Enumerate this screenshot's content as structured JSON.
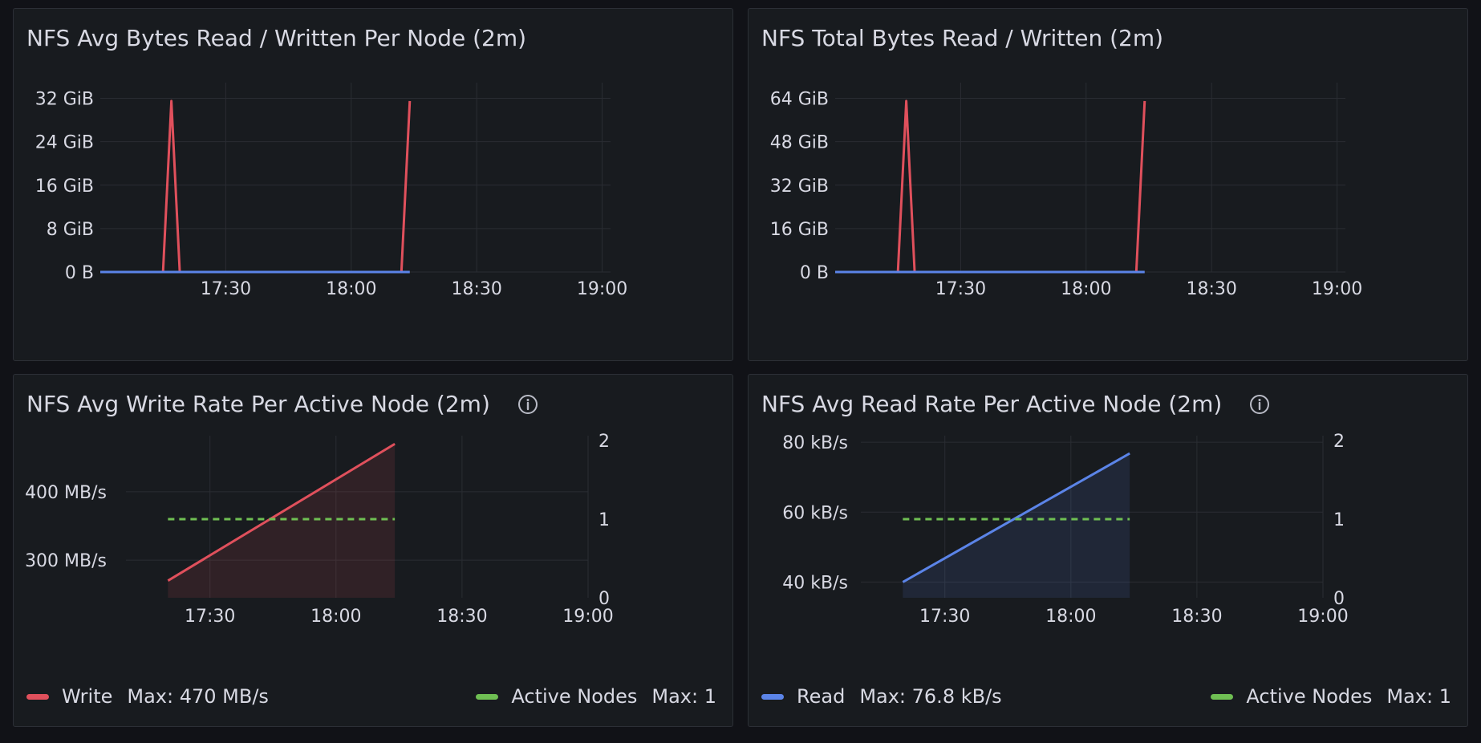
{
  "colors": {
    "write": "#e0505c",
    "read": "#5b84e8",
    "active_nodes": "#6fbf53",
    "grid": "#2a2d33",
    "tick_text": "#d8d9e3"
  },
  "panels": [
    {
      "title": "NFS Avg Bytes Read / Written Per Node (2m)",
      "has_info_icon": false
    },
    {
      "title": "NFS Total Bytes Read / Written (2m)",
      "has_info_icon": false
    },
    {
      "title": "NFS Avg Write Rate Per Active Node (2m)",
      "has_info_icon": true,
      "legend": [
        {
          "name": "Write",
          "max_label": "Max: 470 MB/s"
        },
        {
          "name": "Active Nodes",
          "max_label": "Max: 1"
        }
      ]
    },
    {
      "title": "NFS Avg Read Rate Per Active Node (2m)",
      "has_info_icon": true,
      "legend": [
        {
          "name": "Read",
          "max_label": "Max: 76.8 kB/s"
        },
        {
          "name": "Active Nodes",
          "max_label": "Max: 1"
        }
      ]
    }
  ],
  "chart_data": [
    {
      "type": "line",
      "title": "NFS Avg Bytes Read / Written Per Node (2m)",
      "x_ticks": [
        "17:30",
        "18:00",
        "18:30",
        "19:00"
      ],
      "x_range": [
        "17:00",
        "19:02"
      ],
      "y_ticks": [
        "32 GiB",
        "24 GiB",
        "16 GiB",
        "8 GiB",
        "0 B"
      ],
      "y_tick_values": [
        32,
        24,
        16,
        8,
        0
      ],
      "ylim": [
        0,
        34
      ],
      "y_unit": "GiB",
      "series": [
        {
          "color_key": "write",
          "points": [
            [
              "17:00",
              0
            ],
            [
              "17:15",
              0
            ],
            [
              "17:17",
              31.5
            ],
            [
              "17:19",
              0
            ],
            [
              "18:12",
              0
            ],
            [
              "18:14",
              31.5
            ]
          ]
        },
        {
          "color_key": "read",
          "points": [
            [
              "17:00",
              0
            ],
            [
              "18:14",
              0
            ]
          ]
        }
      ]
    },
    {
      "type": "line",
      "title": "NFS Total Bytes Read / Written (2m)",
      "x_ticks": [
        "17:30",
        "18:00",
        "18:30",
        "19:00"
      ],
      "x_range": [
        "17:00",
        "19:02"
      ],
      "y_ticks": [
        "64 GiB",
        "48 GiB",
        "32 GiB",
        "16 GiB",
        "0 B"
      ],
      "y_tick_values": [
        64,
        48,
        32,
        16,
        0
      ],
      "ylim": [
        0,
        68
      ],
      "y_unit": "GiB",
      "series": [
        {
          "color_key": "write",
          "points": [
            [
              "17:00",
              0
            ],
            [
              "17:15",
              0
            ],
            [
              "17:17",
              63
            ],
            [
              "17:19",
              0
            ],
            [
              "18:12",
              0
            ],
            [
              "18:14",
              63
            ]
          ]
        },
        {
          "color_key": "read",
          "points": [
            [
              "17:00",
              0
            ],
            [
              "18:14",
              0
            ]
          ]
        }
      ]
    },
    {
      "type": "area",
      "title": "NFS Avg Write Rate Per Active Node (2m)",
      "x_ticks": [
        "17:30",
        "18:00",
        "18:30",
        "19:00"
      ],
      "x_range": [
        "17:10",
        "19:00"
      ],
      "y_ticks": [
        "400 MB/s",
        "300 MB/s"
      ],
      "y_tick_values": [
        400,
        300
      ],
      "ylim": [
        245,
        475
      ],
      "y_unit": "MB/s",
      "y2_ticks": [
        "2",
        "1",
        "0"
      ],
      "y2_tick_values": [
        2,
        1,
        0
      ],
      "y2lim": [
        0,
        2
      ],
      "series": [
        {
          "name": "Write",
          "color_key": "write",
          "fill": true,
          "points": [
            [
              "17:20",
              270
            ],
            [
              "18:14",
              470
            ]
          ]
        },
        {
          "name": "Active Nodes",
          "color_key": "active_nodes",
          "dashed": true,
          "axis": "right",
          "points": [
            [
              "17:20",
              1
            ],
            [
              "18:14",
              1
            ]
          ]
        }
      ]
    },
    {
      "type": "area",
      "title": "NFS Avg Read Rate Per Active Node (2m)",
      "x_ticks": [
        "17:30",
        "18:00",
        "18:30",
        "19:00"
      ],
      "x_range": [
        "17:10",
        "19:00"
      ],
      "y_ticks": [
        "80 kB/s",
        "60 kB/s",
        "40 kB/s"
      ],
      "y_tick_values": [
        80,
        60,
        40
      ],
      "ylim": [
        35.5,
        80.5
      ],
      "y_unit": "kB/s",
      "y2_ticks": [
        "2",
        "1",
        "0"
      ],
      "y2_tick_values": [
        2,
        1,
        0
      ],
      "y2lim": [
        0,
        2
      ],
      "series": [
        {
          "name": "Read",
          "color_key": "read",
          "fill": true,
          "points": [
            [
              "17:20",
              40
            ],
            [
              "18:14",
              76.8
            ]
          ]
        },
        {
          "name": "Active Nodes",
          "color_key": "active_nodes",
          "dashed": true,
          "axis": "right",
          "points": [
            [
              "17:20",
              1
            ],
            [
              "18:14",
              1
            ]
          ]
        }
      ]
    }
  ]
}
